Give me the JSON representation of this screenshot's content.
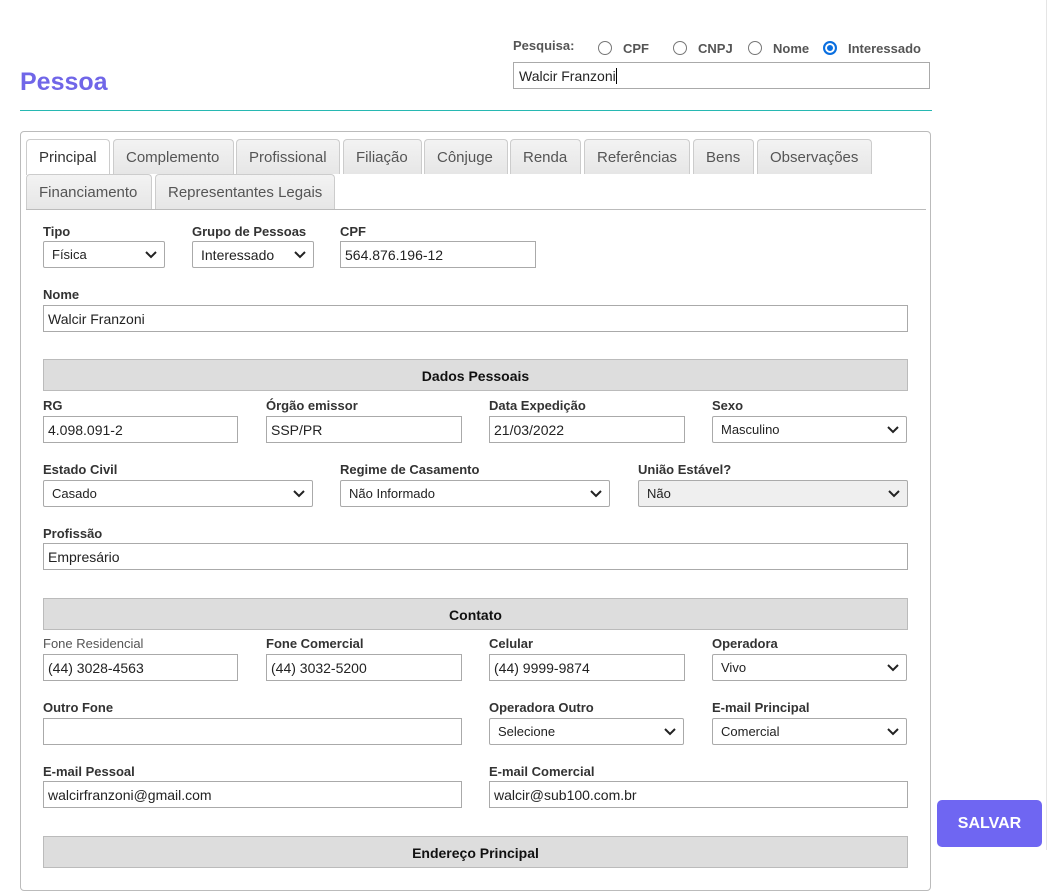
{
  "page": {
    "title": "Pessoa"
  },
  "search": {
    "label": "Pesquisa:",
    "options": [
      "CPF",
      "CNPJ",
      "Nome",
      "Interessado"
    ],
    "selected": "Interessado",
    "value": "Walcir Franzoni"
  },
  "tabs": [
    "Principal",
    "Complemento",
    "Profissional",
    "Filiação",
    "Cônjuge",
    "Renda",
    "Referências",
    "Bens",
    "Observações",
    "Financiamento",
    "Representantes Legais"
  ],
  "active_tab": "Principal",
  "form": {
    "tipo": {
      "label": "Tipo",
      "value": "Física"
    },
    "grupo": {
      "label": "Grupo de Pessoas",
      "value": "Interessado"
    },
    "cpf": {
      "label": "CPF",
      "value": "564.876.196-12"
    },
    "nome": {
      "label": "Nome",
      "value": "Walcir Franzoni"
    },
    "dados_pessoais": "Dados Pessoais",
    "rg": {
      "label": "RG",
      "value": "4.098.091-2"
    },
    "orgao": {
      "label": "Órgão emissor",
      "value": "SSP/PR"
    },
    "data_exp": {
      "label": "Data Expedição",
      "value": "21/03/2022"
    },
    "sexo": {
      "label": "Sexo",
      "value": "Masculino"
    },
    "estado_civil": {
      "label": "Estado Civil",
      "value": "Casado"
    },
    "regime": {
      "label": "Regime de Casamento",
      "value": "Não Informado"
    },
    "uniao": {
      "label": "União Estável?",
      "value": "Não"
    },
    "profissao": {
      "label": "Profissão",
      "value": "Empresário"
    },
    "contato": "Contato",
    "fone_res": {
      "label": "Fone Residencial",
      "value": "(44) 3028-4563"
    },
    "fone_com": {
      "label": "Fone Comercial",
      "value": "(44) 3032-5200"
    },
    "celular": {
      "label": "Celular",
      "value": "(44) 9999-9874"
    },
    "operadora": {
      "label": "Operadora",
      "value": "Vivo"
    },
    "outro_fone": {
      "label": "Outro Fone",
      "value": ""
    },
    "operadora_outro": {
      "label": "Operadora Outro",
      "value": "Selecione"
    },
    "email_principal": {
      "label": "E-mail Principal",
      "value": "Comercial"
    },
    "email_pessoal": {
      "label": "E-mail Pessoal",
      "value": "walcirfranzoni@gmail.com"
    },
    "email_comercial": {
      "label": "E-mail Comercial",
      "value": "walcir@sub100.com.br"
    },
    "endereco": "Endereço Principal"
  },
  "actions": {
    "save": "SALVAR"
  },
  "colors": {
    "title": "#7066e8",
    "rule": "#27b8b2",
    "save": "#6f66f2",
    "radio_selected": "#0a6fe0"
  }
}
